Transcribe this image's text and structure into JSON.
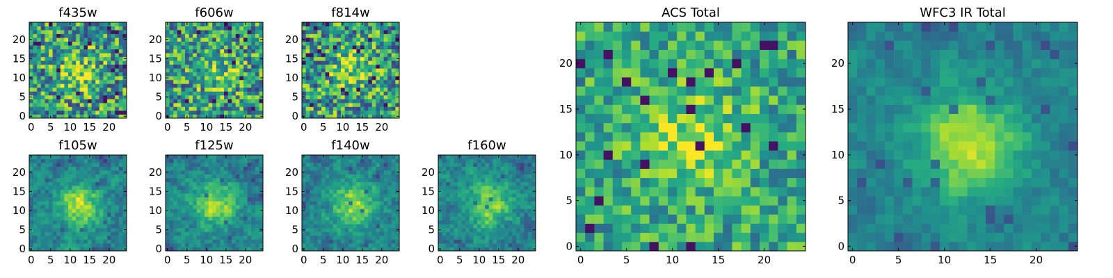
{
  "chart_data": {
    "type": "heatmap",
    "colormap": "viridis",
    "grid_size": 25,
    "panels": [
      {
        "id": "f435w",
        "title": "f435w",
        "xticks": [
          0,
          5,
          10,
          15,
          20
        ],
        "yticks": [
          0,
          5,
          10,
          15,
          20
        ],
        "xlim": [
          0,
          24
        ],
        "ylim": [
          0,
          24
        ],
        "pattern": "noise"
      },
      {
        "id": "f606w",
        "title": "f606w",
        "xticks": [
          0,
          5,
          10,
          15,
          20
        ],
        "yticks": [
          0,
          5,
          10,
          15,
          20
        ],
        "xlim": [
          0,
          24
        ],
        "ylim": [
          0,
          24
        ],
        "pattern": "noise"
      },
      {
        "id": "f814w",
        "title": "f814w",
        "xticks": [
          0,
          5,
          10,
          15,
          20
        ],
        "yticks": [
          0,
          5,
          10,
          15,
          20
        ],
        "xlim": [
          0,
          24
        ],
        "ylim": [
          0,
          24
        ],
        "pattern": "noise"
      },
      {
        "id": "f105w",
        "title": "f105w",
        "xticks": [
          0,
          5,
          10,
          15,
          20
        ],
        "yticks": [
          0,
          5,
          10,
          15,
          20
        ],
        "xlim": [
          0,
          24
        ],
        "ylim": [
          0,
          24
        ],
        "pattern": "source"
      },
      {
        "id": "f125w",
        "title": "f125w",
        "xticks": [
          0,
          5,
          10,
          15,
          20
        ],
        "yticks": [
          0,
          5,
          10,
          15,
          20
        ],
        "xlim": [
          0,
          24
        ],
        "ylim": [
          0,
          24
        ],
        "pattern": "source"
      },
      {
        "id": "f140w",
        "title": "f140w",
        "xticks": [
          0,
          5,
          10,
          15,
          20
        ],
        "yticks": [
          0,
          5,
          10,
          15,
          20
        ],
        "xlim": [
          0,
          24
        ],
        "ylim": [
          0,
          24
        ],
        "pattern": "source"
      },
      {
        "id": "f160w",
        "title": "f160w",
        "xticks": [
          0,
          5,
          10,
          15,
          20
        ],
        "yticks": [
          0,
          5,
          10,
          15,
          20
        ],
        "xlim": [
          0,
          24
        ],
        "ylim": [
          0,
          24
        ],
        "pattern": "source"
      },
      {
        "id": "acs",
        "title": "ACS Total",
        "xticks": [
          0,
          5,
          10,
          15,
          20
        ],
        "yticks": [
          0,
          5,
          10,
          15,
          20
        ],
        "xlim": [
          0,
          24
        ],
        "ylim": [
          0,
          24
        ],
        "pattern": "mixed"
      },
      {
        "id": "wfc3",
        "title": "WFC3 IR Total",
        "xticks": [
          0,
          5,
          10,
          15,
          20
        ],
        "yticks": [
          0,
          5,
          10,
          15,
          20
        ],
        "xlim": [
          0,
          24
        ],
        "ylim": [
          0,
          24
        ],
        "pattern": "smooth"
      }
    ]
  }
}
